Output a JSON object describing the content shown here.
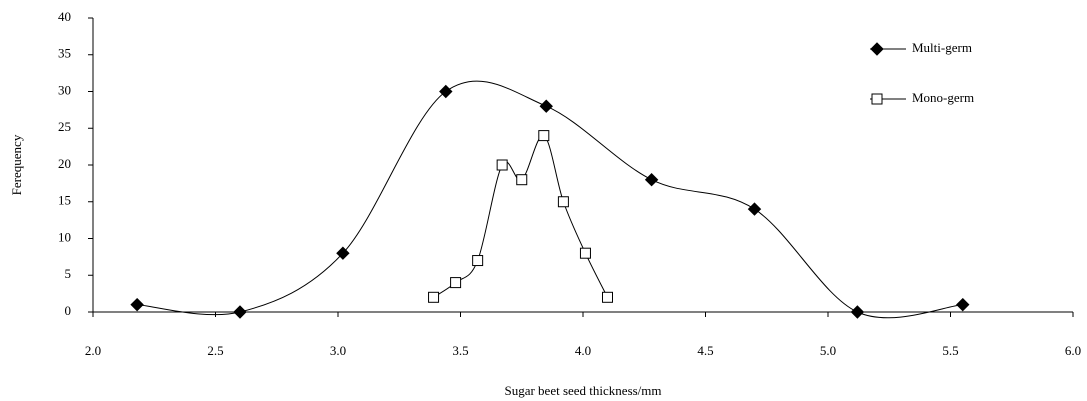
{
  "chart_data": {
    "type": "line",
    "x_label": "Sugar beet seed thickness/mm",
    "y_label": "Ferequency",
    "xlim": [
      2,
      6
    ],
    "xticks": [
      {
        "value": 2,
        "label": "2.0"
      },
      {
        "value": 2.5,
        "label": "2.5"
      },
      {
        "value": 3,
        "label": "3.0"
      },
      {
        "value": 3.5,
        "label": "3.5"
      },
      {
        "value": 4,
        "label": "4.0"
      },
      {
        "value": 4.5,
        "label": "4.5"
      },
      {
        "value": 5,
        "label": "5.0"
      },
      {
        "value": 5.5,
        "label": "5.5"
      },
      {
        "value": 6,
        "label": "6.0"
      }
    ],
    "ylim": [
      0,
      40
    ],
    "yticks": [
      0,
      5,
      10,
      15,
      20,
      25,
      30,
      35,
      40
    ],
    "smooth": true,
    "legend": "top-right",
    "series": [
      {
        "name": "Multi-germ",
        "color": "#000000",
        "marker": "diamond",
        "x": [
          2.18,
          2.6,
          3.02,
          3.44,
          3.85,
          4.28,
          4.7,
          5.12,
          5.55
        ],
        "values": [
          1,
          0,
          8,
          30,
          28,
          18,
          14,
          0,
          1
        ]
      },
      {
        "name": "Mono-germ",
        "color": "#000000",
        "marker": "square",
        "x": [
          3.39,
          3.48,
          3.57,
          3.67,
          3.75,
          3.84,
          3.92,
          4.01,
          4.1
        ],
        "values": [
          2,
          4,
          7,
          20,
          18,
          24,
          15,
          8,
          2
        ]
      }
    ]
  }
}
